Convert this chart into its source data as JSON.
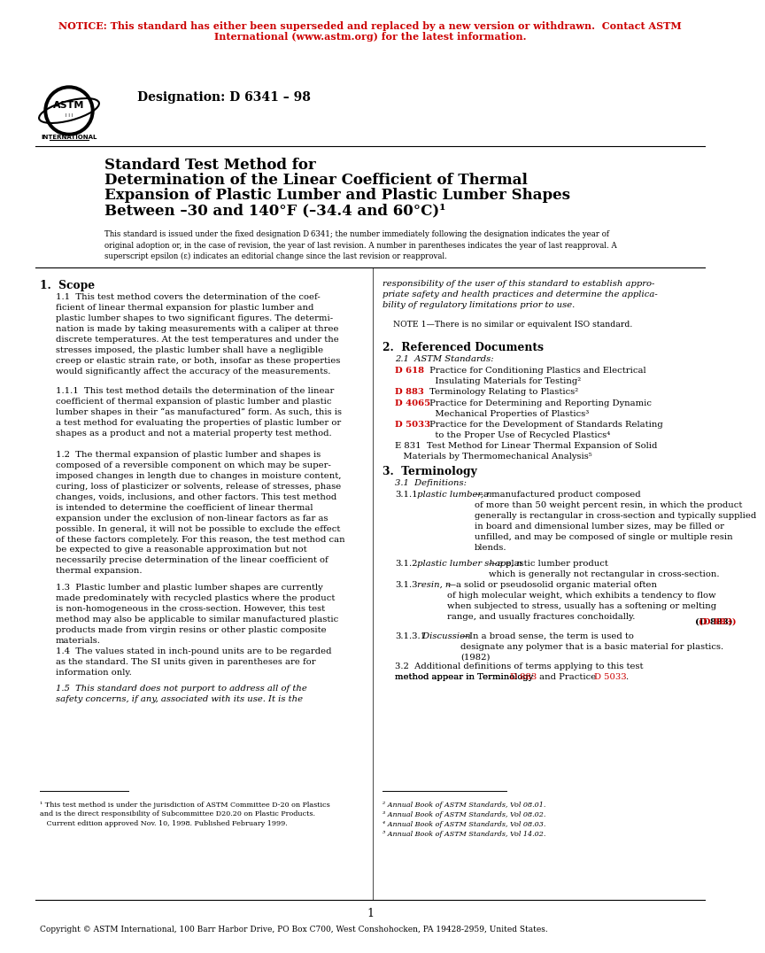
{
  "notice_text_line1": "NOTICE: This standard has either been superseded and replaced by a new version or withdrawn.  Contact ASTM",
  "notice_text_line2": "International (www.astm.org) for the latest information.",
  "notice_color": "#cc0000",
  "designation": "Designation: D 6341 – 98",
  "title_line1": "Standard Test Method for",
  "title_line2": "Determination of the Linear Coefficient of Thermal",
  "title_line3": "Expansion of Plastic Lumber and Plastic Lumber Shapes",
  "title_line4": "Between –30 and 140°F (–34.4 and 60°C)¹",
  "subtitle": "This standard is issued under the fixed designation D 6341; the number immediately following the designation indicates the year of\noriginal adoption or, in the case of revision, the year of last revision. A number in parentheses indicates the year of last reapproval. A\nsuperscript epsilon (ε) indicates an editorial change since the last revision or reapproval.",
  "section1_head": "1.  Scope",
  "section1_p1": "1.1  This test method covers the determination of the coef-\nficient of linear thermal expansion for plastic lumber and\nplastic lumber shapes to two significant figures. The determi-\nnation is made by taking measurements with a caliper at three\ndiscrete temperatures. At the test temperatures and under the\nstresses imposed, the plastic lumber shall have a negligible\ncreep or elastic strain rate, or both, insofar as these properties\nwould significantly affect the accuracy of the measurements.",
  "section1_p2": "1.1.1  This test method details the determination of the linear\ncoefficient of thermal expansion of plastic lumber and plastic\nlumber shapes in their “as manufactured” form. As such, this is\na test method for evaluating the properties of plastic lumber or\nshapes as a product and not a material property test method.",
  "section1_p3": "1.2  The thermal expansion of plastic lumber and shapes is\ncomposed of a reversible component on which may be super-\nimposed changes in length due to changes in moisture content,\ncuring, loss of plasticizer or solvents, release of stresses, phase\nchanges, voids, inclusions, and other factors. This test method\nis intended to determine the coefficient of linear thermal\nexpansion under the exclusion of non-linear factors as far as\npossible. In general, it will not be possible to exclude the effect\nof these factors completely. For this reason, the test method can\nbe expected to give a reasonable approximation but not\nnecessarily precise determination of the linear coefficient of\nthermal expansion.",
  "section1_p4": "1.3  Plastic lumber and plastic lumber shapes are currently\nmade predominately with recycled plastics where the product\nis non-homogeneous in the cross-section. However, this test\nmethod may also be applicable to similar manufactured plastic\nproducts made from virgin resins or other plastic composite\nmaterials.",
  "section1_p5": "1.4  The values stated in inch-pound units are to be regarded\nas the standard. The SI units given in parentheses are for\ninformation only.",
  "section1_p6_italic": "1.5  This standard does not purport to address all of the\nsafety concerns, if any, associated with its use. It is the",
  "right_col_italic": "responsibility of the user of this standard to establish appro-\npriate safety and health practices and determine the applica-\nbility of regulatory limitations prior to use.",
  "note1": "NOTE 1—There is no similar or equivalent ISO standard.",
  "section2_head": "2.  Referenced Documents",
  "section2_sub": "2.1  ASTM Standards:",
  "ref_d618_red": "D 618",
  "ref_d618_text": " Practice for Conditioning Plastics and Electrical\n   Insulating Materials for Testing²",
  "ref_d883_red": "D 883",
  "ref_d883_text": " Terminology Relating to Plastics²",
  "ref_d4065_red": "D 4065",
  "ref_d4065_text": " Practice for Determining and Reporting Dynamic\n   Mechanical Properties of Plastics³",
  "ref_d5033_red": "D 5033",
  "ref_d5033_text": " Practice for the Development of Standards Relating\n   to the Proper Use of Recycled Plastics⁴",
  "ref_e831_text": "E 831  Test Method for Linear Thermal Expansion of Solid\n   Materials by Thermomechanical Analysis⁵",
  "section3_head": "3.  Terminology",
  "section3_sub": "3.1  Definitions:",
  "def311_label": "3.1.1",
  "def311_italic": " plastic lumber, n",
  "def311_dash": "—",
  "def311_text": "a manufactured product composed\nof more than 50 weight percent resin, in which the product\ngenerally is rectangular in cross-section and typically supplied\nin board and dimensional lumber sizes, may be filled or\nunfilled, and may be composed of single or multiple resin\nblends.",
  "def312_label": "3.1.2",
  "def312_italic": " plastic lumber shape, n",
  "def312_dash": "—",
  "def312_text": "a plastic lumber product\nwhich is generally not rectangular in cross-section.",
  "def313_label": "3.1.3",
  "def313_italic": " resin, n",
  "def313_dash": "—",
  "def313_text": "a solid or pseudosolid organic material often\nof high molecular weight, which exhibits a tendency to flow\nwhen subjected to stress, usually has a softening or melting\nrange, and usually fractures conchoidally.",
  "def313_ref": "(D 883)",
  "def3131_label": "3.1.3.1",
  "def3131_italic": " Discussion",
  "def3131_dash": "—",
  "def3131_text": "In a broad sense, the term is used to\ndesignate any polymer that is a basic material for plastics.\n(1982)",
  "section32_text1": "3.2  Additional definitions of terms applying to this test\nmethod appear in Terminology ",
  "section32_ref1": "D 883",
  "section32_text2": " and Practice ",
  "section32_ref2": "D 5033",
  "section32_text3": ".",
  "footnote1": "¹ This test method is under the jurisdiction of ASTM Committee D-20 on Plastics\nand is the direct responsibility of Subcommittee D20.20 on Plastic Products.\n   Current edition approved Nov. 10, 1998. Published February 1999.",
  "footnote2": "² Annual Book of ASTM Standards, Vol 08.01.",
  "footnote3": "³ Annual Book of ASTM Standards, Vol 08.02.",
  "footnote4": "⁴ Annual Book of ASTM Standards, Vol 08.03.",
  "footnote5": "⁵ Annual Book of ASTM Standards, Vol 14.02.",
  "copyright": "Copyright © ASTM International, 100 Barr Harbor Drive, PO Box C700, West Conshohocken, PA 19428-2959, United States.",
  "page_num": "1",
  "red_color": "#cc0000",
  "black_color": "#000000",
  "gray_color": "#555555",
  "bg_color": "#ffffff"
}
